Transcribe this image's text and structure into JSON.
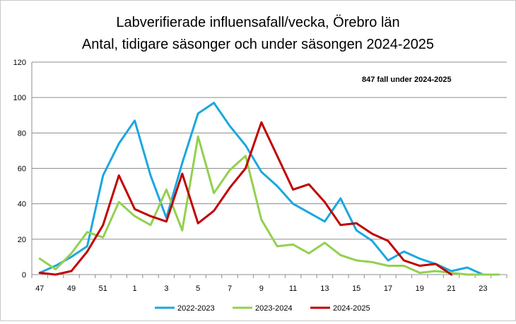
{
  "chart_data": {
    "type": "line",
    "title": "Labverifierade influensafall/vecka, Örebro län",
    "subtitle": "Antal, tidigare säsonger och  under säsongen 2024-2025",
    "annotation": "847  fall under 2024-2025",
    "xlabel": "",
    "ylabel": "",
    "ylim": [
      0,
      120
    ],
    "yticks": [
      0,
      20,
      40,
      60,
      80,
      100,
      120
    ],
    "grid": true,
    "legend_position": "bottom",
    "x": [
      "47",
      "48",
      "49",
      "50",
      "51",
      "52",
      "1",
      "2",
      "3",
      "4",
      "5",
      "6",
      "7",
      "8",
      "9",
      "10",
      "11",
      "12",
      "13",
      "14",
      "15",
      "16",
      "17",
      "18",
      "19",
      "20",
      "21",
      "22",
      "23",
      "24"
    ],
    "x_tick_labels": [
      "47",
      "",
      "49",
      "",
      "51",
      "",
      "1",
      "",
      "3",
      "",
      "5",
      "",
      "7",
      "",
      "9",
      "",
      "11",
      "",
      "13",
      "",
      "15",
      "",
      "17",
      "",
      "19",
      "",
      "21",
      "",
      "23",
      ""
    ],
    "series": [
      {
        "name": "2022-2023",
        "color": "#1aa7e0",
        "values": [
          1,
          5,
          10,
          16,
          56,
          74,
          87,
          56,
          32,
          63,
          91,
          97,
          84,
          73,
          58,
          50,
          40,
          35,
          30,
          43,
          25,
          19,
          8,
          13,
          9,
          6,
          2,
          4,
          0,
          null
        ]
      },
      {
        "name": "2023-2024",
        "color": "#92d050",
        "values": [
          9,
          3,
          12,
          24,
          21,
          41,
          33,
          28,
          48,
          25,
          78,
          46,
          59,
          67,
          31,
          16,
          17,
          12,
          18,
          11,
          8,
          7,
          5,
          5,
          1,
          2,
          1,
          0,
          0,
          0
        ]
      },
      {
        "name": "2024-2025",
        "color": "#c00000",
        "values": [
          1,
          0,
          2,
          13,
          28,
          56,
          37,
          33,
          30,
          57,
          29,
          36,
          49,
          60,
          86,
          67,
          48,
          51,
          41,
          28,
          29,
          23,
          19,
          8,
          5,
          6,
          0,
          null,
          null,
          null
        ]
      }
    ]
  }
}
